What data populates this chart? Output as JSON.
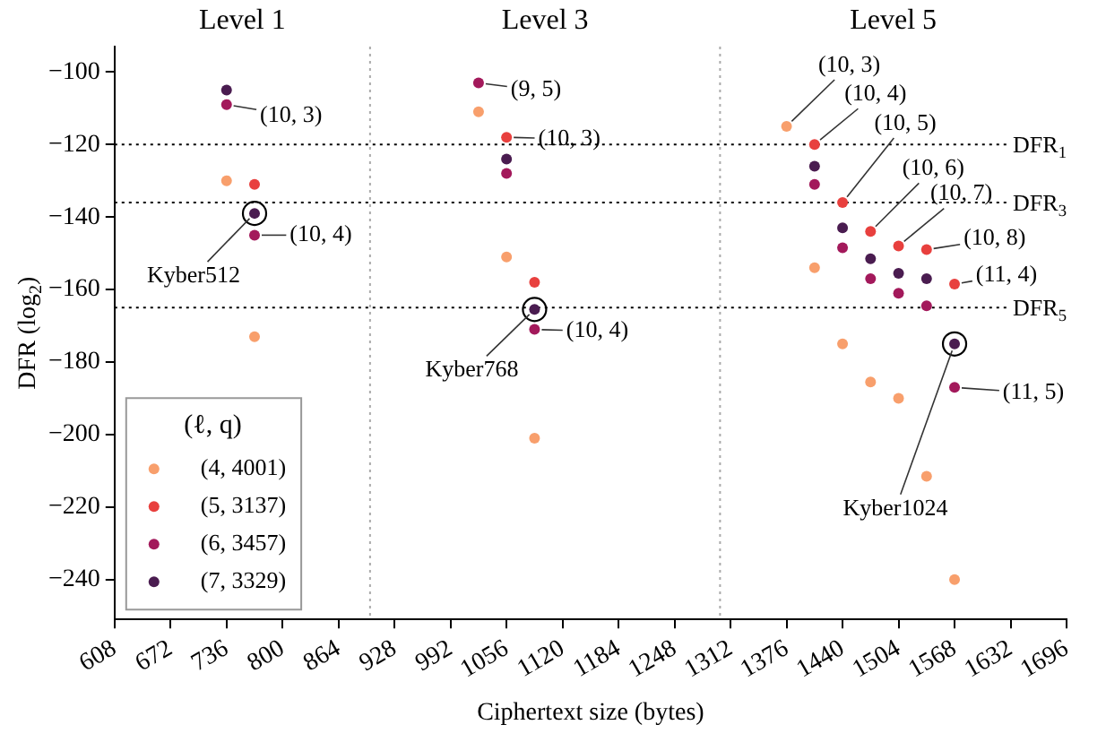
{
  "chart_data": {
    "type": "scatter",
    "xlabel": "Ciphertext size (bytes)",
    "ylabel": "DFR (log$_{2}$)",
    "legend_title": "(ℓ, q)",
    "xlim": [
      608,
      1696
    ],
    "xticks": [
      608,
      672,
      736,
      800,
      864,
      928,
      992,
      1056,
      1120,
      1184,
      1248,
      1312,
      1376,
      1440,
      1504,
      1568,
      1632,
      1696
    ],
    "ylim": [
      -251,
      -93
    ],
    "yticks": [
      -240,
      -220,
      -200,
      -180,
      -160,
      -140,
      -120,
      -100
    ],
    "grid": false,
    "legend": "bottom left",
    "marker": "circle",
    "series": [
      {
        "name": "(4, 4001)",
        "color": "#f89f6c",
        "x": [
          736,
          768,
          1024,
          1056,
          1088,
          1376,
          1408,
          1440,
          1472,
          1504,
          1536,
          1568
        ],
        "values": [
          -130,
          -173,
          -111,
          -151,
          -201,
          -115,
          -154,
          -175,
          -185.5,
          -190,
          -211.5,
          -240
        ]
      },
      {
        "name": "(5, 3137)",
        "color": "#e8403e",
        "x": [
          768,
          1056,
          1088,
          1408,
          1440,
          1472,
          1504,
          1536,
          1568
        ],
        "values": [
          -131,
          -118,
          -158,
          -120,
          -136,
          -144,
          -148,
          -149,
          -158.5
        ]
      },
      {
        "name": "(6, 3457)",
        "color": "#a3195b",
        "x": [
          736,
          768,
          1024,
          1056,
          1088,
          1408,
          1440,
          1472,
          1504,
          1536,
          1568
        ],
        "values": [
          -109,
          -145,
          -103,
          -128,
          -171,
          -131,
          -148.5,
          -157,
          -161,
          -164.5,
          -187
        ]
      },
      {
        "name": "(7, 3329)",
        "color": "#4a1c50",
        "x": [
          736,
          768,
          1056,
          1088,
          1408,
          1440,
          1472,
          1504,
          1536,
          1568
        ],
        "values": [
          -105,
          -139,
          -124,
          -165.5,
          -126,
          -143,
          -151.5,
          -155.5,
          -157,
          -175
        ]
      },
      {
        "color": "#000000",
        "x": [
          768,
          1088,
          1568
        ],
        "values": [
          -139,
          -165.5,
          -175
        ]
      }
    ],
    "ref_lines": [
      {
        "axis": "y",
        "value": -120,
        "label": "DFR$_{1}$",
        "color": "#000000",
        "line_style": "dotted"
      },
      {
        "axis": "y",
        "value": -136,
        "label": "DFR$_{3}$",
        "color": "#000000",
        "line_style": "dotted"
      },
      {
        "axis": "y",
        "value": -165,
        "label": "DFR$_{5}$",
        "color": "#000000",
        "line_style": "dotted"
      },
      {
        "axis": "x",
        "value": 900,
        "color": "#aaaaaa",
        "line_style": "dotted"
      },
      {
        "axis": "x",
        "value": 1300,
        "color": "#aaaaaa",
        "line_style": "dotted"
      }
    ],
    "annotations": [
      "Level 1",
      "Level 3",
      "Level 5",
      {
        "text": "(10, 3)",
        "x": 736,
        "y": -109
      },
      {
        "text": "(10, 4)",
        "x": 768,
        "y": -145
      },
      {
        "text": "Kyber512",
        "x": 768,
        "y": -139
      },
      {
        "text": "(9, 5)",
        "x": 1024,
        "y": -103
      },
      {
        "text": "(10, 3)",
        "x": 1056,
        "y": -118
      },
      {
        "text": "(10, 4)",
        "x": 1088,
        "y": -171
      },
      {
        "text": "Kyber768",
        "x": 1088,
        "y": -165.5
      },
      {
        "text": "(10, 3)",
        "x": 1376,
        "y": -115
      },
      {
        "text": "(10, 4)",
        "x": 1408,
        "y": -120
      },
      {
        "text": "(10, 5)",
        "x": 1440,
        "y": -136
      },
      {
        "text": "(10, 6)",
        "x": 1472,
        "y": -144
      },
      {
        "text": "(10, 7)",
        "x": 1504,
        "y": -148
      },
      {
        "text": "(10, 8)",
        "x": 1536,
        "y": -149
      },
      {
        "text": "(11, 4)",
        "x": 1568,
        "y": -158.5
      },
      {
        "text": "(11, 5)",
        "x": 1568,
        "y": -187
      },
      {
        "text": "Kyber1024",
        "x": 1568,
        "y": -175
      }
    ]
  }
}
